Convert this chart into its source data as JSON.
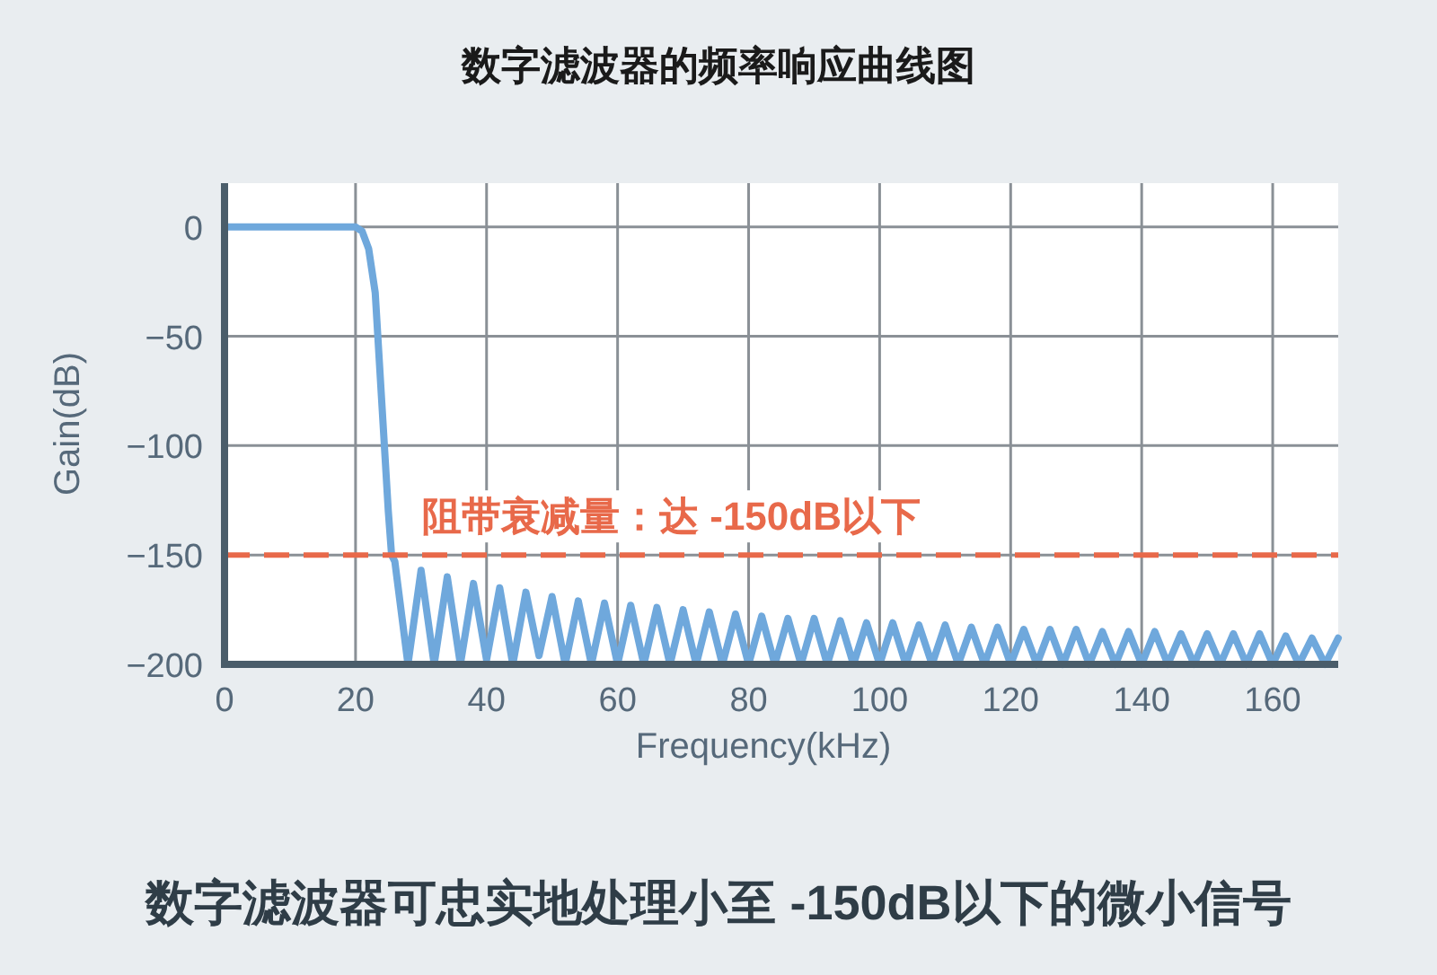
{
  "chart_data": {
    "type": "line",
    "title": "数字滤波器的频率响应曲线图",
    "xlabel": "Frequency(kHz)",
    "ylabel": "Gain(dB)",
    "annotations": [
      "数字滤波器可忠实地处理小至 -150dB以下的微小信号"
    ],
    "xlim": [
      0,
      170
    ],
    "ylim": [
      -200,
      20
    ],
    "xticks": [
      0,
      20,
      40,
      60,
      80,
      100,
      120,
      140,
      160
    ],
    "yticks": [
      -200,
      -150,
      -100,
      -50,
      0
    ],
    "grid": true,
    "ref_lines": [
      {
        "axis": "y",
        "value": -150,
        "label": "阻带衰减量：达 -150dB以下",
        "color": "#e8694a",
        "line_style": "dashed"
      }
    ],
    "series": [
      {
        "color": "#6fa8dc",
        "x": [
          0,
          20,
          21,
          22,
          23,
          24,
          25,
          25.5,
          26,
          28,
          30,
          32,
          34,
          36,
          38,
          40,
          42,
          44,
          46,
          48,
          50,
          52,
          54,
          56,
          58,
          60,
          62,
          64,
          66,
          68,
          70,
          72,
          74,
          76,
          78,
          80,
          82,
          84,
          86,
          88,
          90,
          92,
          94,
          96,
          98,
          100,
          102,
          104,
          106,
          108,
          110,
          112,
          114,
          116,
          118,
          120,
          122,
          124,
          126,
          128,
          130,
          132,
          134,
          136,
          138,
          140,
          142,
          144,
          146,
          148,
          150,
          152,
          154,
          156,
          158,
          160,
          162,
          164,
          166,
          168,
          170
        ],
        "values": [
          0,
          0,
          -2,
          -10,
          -30,
          -80,
          -130,
          -150,
          -153,
          -200,
          -157,
          -200,
          -160,
          -200,
          -163,
          -198,
          -165,
          -200,
          -167,
          -196,
          -169,
          -200,
          -171,
          -200,
          -172,
          -200,
          -173,
          -200,
          -174,
          -200,
          -175,
          -200,
          -176,
          -200,
          -177,
          -200,
          -178,
          -200,
          -179,
          -200,
          -179,
          -200,
          -180,
          -200,
          -181,
          -200,
          -181,
          -200,
          -182,
          -200,
          -182,
          -200,
          -183,
          -200,
          -183,
          -200,
          -184,
          -200,
          -184,
          -200,
          -184,
          -200,
          -185,
          -200,
          -185,
          -200,
          -185,
          -200,
          -186,
          -200,
          -186,
          -200,
          -186,
          -200,
          -186,
          -200,
          -187,
          -200,
          -188,
          -200,
          -188
        ]
      }
    ]
  }
}
